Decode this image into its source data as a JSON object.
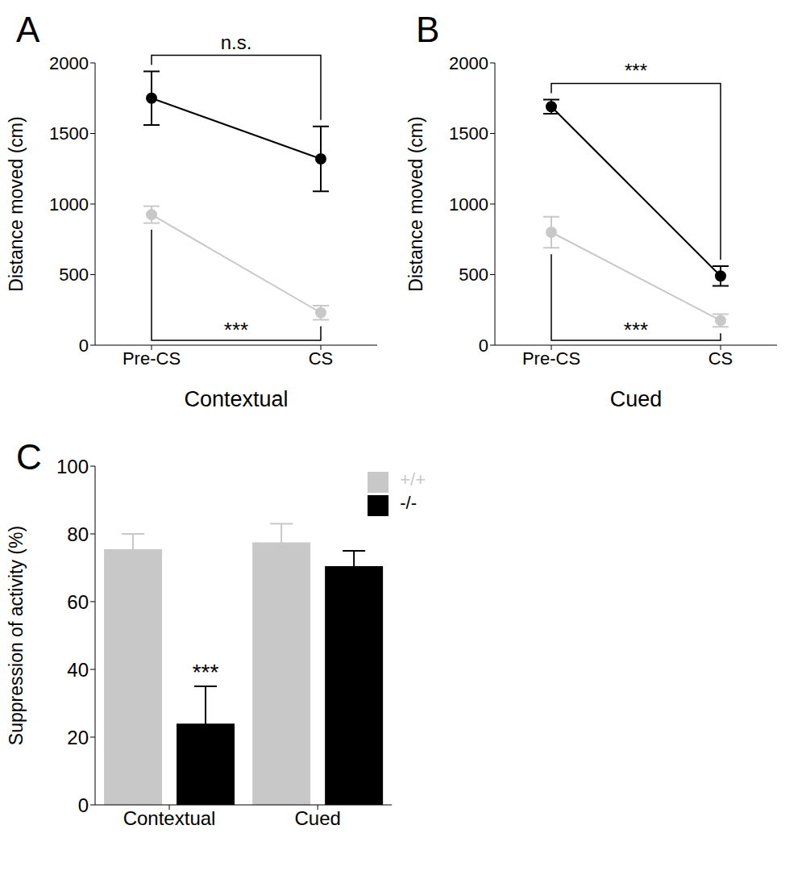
{
  "chart_data": [
    {
      "type": "line",
      "panel_label": "A",
      "x_label": "Contextual",
      "y_label": "Distance moved (cm)",
      "categories": [
        "Pre-CS",
        "CS"
      ],
      "series": [
        {
          "color": "#c8c8c8",
          "values": [
            925,
            230
          ],
          "errors": [
            60,
            50
          ]
        },
        {
          "color": "#000000",
          "values": [
            1750,
            1320
          ],
          "errors": [
            190,
            230
          ]
        }
      ],
      "ylim": [
        0,
        2000
      ],
      "yticks": [
        0,
        500,
        1000,
        1500,
        2000
      ],
      "annotations": [
        {
          "text": "n.s.",
          "series": 1,
          "side": "above"
        },
        {
          "text": "***",
          "series": 0,
          "side": "below"
        }
      ]
    },
    {
      "type": "line",
      "panel_label": "B",
      "x_label": "Cued",
      "y_label": "Distance moved (cm)",
      "categories": [
        "Pre-CS",
        "CS"
      ],
      "series": [
        {
          "color": "#c8c8c8",
          "values": [
            800,
            175
          ],
          "errors": [
            110,
            45
          ]
        },
        {
          "color": "#000000",
          "values": [
            1690,
            490
          ],
          "errors": [
            50,
            70
          ]
        }
      ],
      "ylim": [
        0,
        2000
      ],
      "yticks": [
        0,
        500,
        1000,
        1500,
        2000
      ],
      "annotations": [
        {
          "text": "***",
          "series": 1,
          "side": "above"
        },
        {
          "text": "***",
          "series": 0,
          "side": "below"
        }
      ]
    },
    {
      "type": "bar",
      "panel_label": "C",
      "y_label": "Suppression of activity (%)",
      "categories": [
        "Contextual",
        "Cued"
      ],
      "series": [
        {
          "name": "+/+",
          "color": "#c8c8c8",
          "values": [
            75.5,
            77.5
          ],
          "errors": [
            4.5,
            5.5
          ]
        },
        {
          "name": "-/-",
          "color": "#000000",
          "values": [
            24,
            70.5
          ],
          "errors": [
            11,
            4.5
          ]
        }
      ],
      "ylim": [
        0,
        100
      ],
      "yticks": [
        0,
        20,
        40,
        60,
        80,
        100
      ],
      "legend": "top-right",
      "annotations": [
        {
          "text": "***",
          "series": 1,
          "category": 0
        }
      ]
    }
  ]
}
